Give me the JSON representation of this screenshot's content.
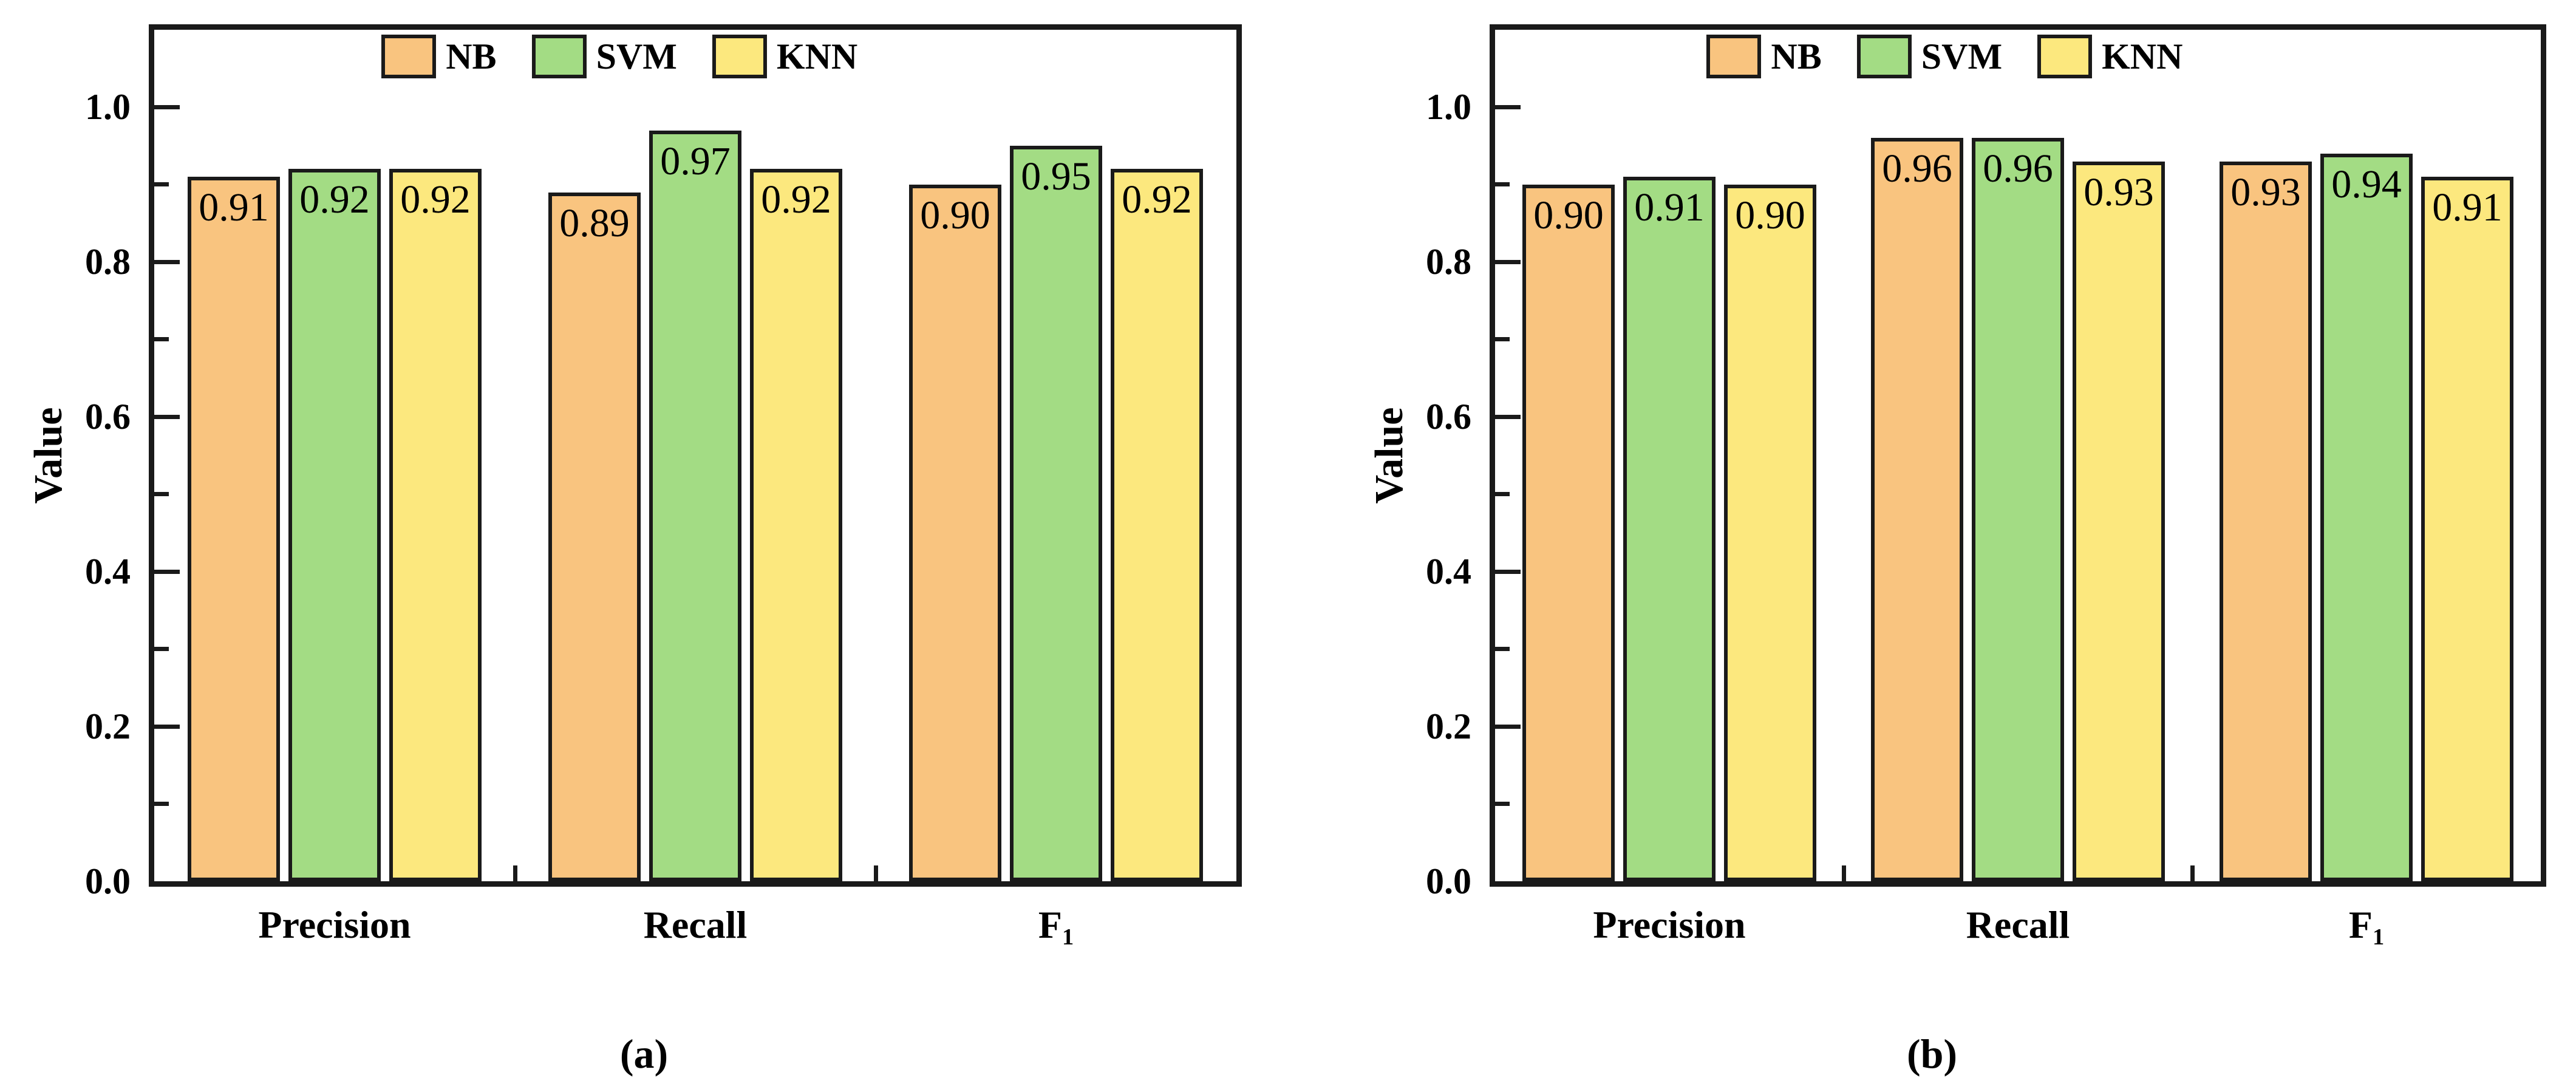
{
  "figure": {
    "background": "#ffffff",
    "text_color": "#000000",
    "axis_color": "#1a1a1a"
  },
  "chart_data": [
    {
      "type": "bar",
      "panel_label": "(a)",
      "title": "",
      "xlabel": "",
      "ylabel": "Value",
      "ylim": [
        0,
        1.1
      ],
      "ytick_values": [
        0.0,
        0.2,
        0.4,
        0.6,
        0.8,
        1.0
      ],
      "yminor_step": 0.1,
      "grid": false,
      "legend_position": "top-center-inside",
      "categories": [
        {
          "text": "Precision",
          "sub": ""
        },
        {
          "text": "Recall",
          "sub": ""
        },
        {
          "text": "F",
          "sub": "1"
        }
      ],
      "series": [
        {
          "name": "NB",
          "color": "#F9C47F",
          "values": [
            0.91,
            0.89,
            0.9
          ]
        },
        {
          "name": "SVM",
          "color": "#A3DC84",
          "values": [
            0.92,
            0.97,
            0.95
          ]
        },
        {
          "name": "KNN",
          "color": "#FCE87E",
          "values": [
            0.92,
            0.92,
            0.92
          ]
        }
      ],
      "value_label_decimals": 2
    },
    {
      "type": "bar",
      "panel_label": "(b)",
      "title": "",
      "xlabel": "",
      "ylabel": "Value",
      "ylim": [
        0,
        1.1
      ],
      "ytick_values": [
        0.0,
        0.2,
        0.4,
        0.6,
        0.8,
        1.0
      ],
      "yminor_step": 0.1,
      "grid": false,
      "legend_position": "top-center-inside",
      "categories": [
        {
          "text": "Precision",
          "sub": ""
        },
        {
          "text": "Recall",
          "sub": ""
        },
        {
          "text": "F",
          "sub": "1"
        }
      ],
      "series": [
        {
          "name": "NB",
          "color": "#F9C47F",
          "values": [
            0.9,
            0.96,
            0.93
          ]
        },
        {
          "name": "SVM",
          "color": "#A3DC84",
          "values": [
            0.91,
            0.96,
            0.94
          ]
        },
        {
          "name": "KNN",
          "color": "#FCE87E",
          "values": [
            0.9,
            0.93,
            0.91
          ]
        }
      ],
      "value_label_decimals": 2
    }
  ]
}
